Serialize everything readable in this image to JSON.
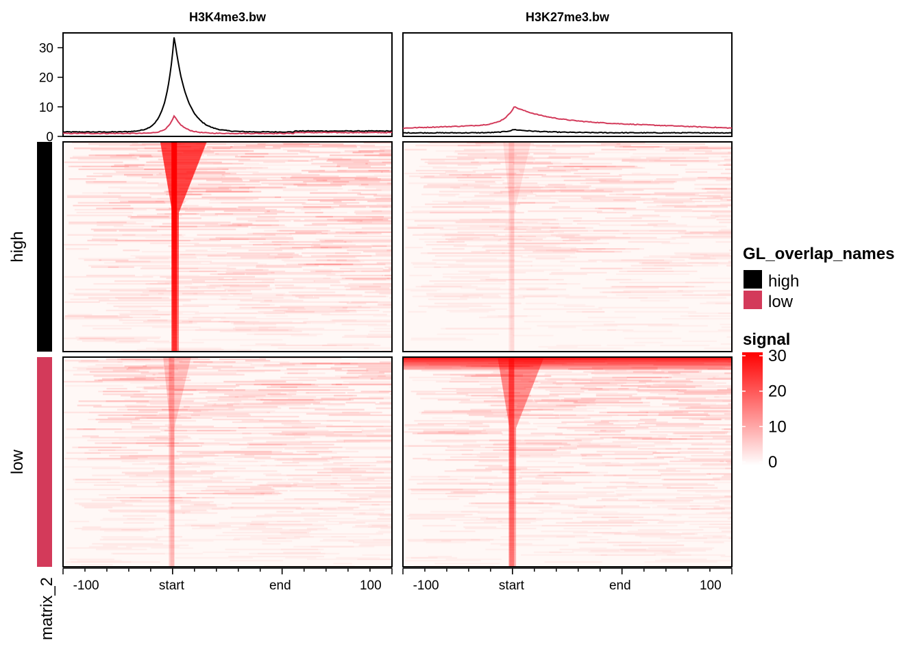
{
  "chart_data": {
    "type": "heatmap",
    "title": "",
    "x_axis": {
      "tick_labels": [
        "-100",
        "start",
        "end",
        "100"
      ],
      "minor_ticks_per_segment": 5
    },
    "profile_y_axis": {
      "ticks": [
        0,
        10,
        20,
        30
      ],
      "range": [
        0,
        35
      ]
    },
    "panels": [
      {
        "name": "H3K4me3.bw",
        "profiles": [
          {
            "group": "high",
            "color": "#000000",
            "peak": 34,
            "baseline": 1.5,
            "peak_x": 0.338,
            "peak_width": 0.025,
            "tail_right": 0.05
          },
          {
            "group": "low",
            "color": "#d33a5a",
            "peak": 7,
            "baseline": 1.0,
            "peak_x": 0.338,
            "peak_width": 0.02,
            "tail_right": 0.04
          }
        ],
        "heatmap_rows": [
          {
            "group": "high",
            "peak_intensity": 1.0,
            "peak_x": 0.338,
            "background": 0.12
          },
          {
            "group": "low",
            "peak_intensity": 0.25,
            "peak_x": 0.33,
            "background": 0.1
          }
        ]
      },
      {
        "name": "H3K27me3.bw",
        "profiles": [
          {
            "group": "high",
            "color": "#000000",
            "peak": 2.3,
            "baseline": 1.2,
            "peak_x": 0.338,
            "peak_width": 0.03,
            "tail_right": 0.2
          },
          {
            "group": "low",
            "color": "#d33a5a",
            "peak": 9,
            "baseline": 2.8,
            "peak_x": 0.338,
            "peak_width": 0.03,
            "tail_right": 0.3
          }
        ],
        "heatmap_rows": [
          {
            "group": "high",
            "peak_intensity": 0.12,
            "peak_x": 0.33,
            "background": 0.08
          },
          {
            "group": "low",
            "peak_intensity": 0.6,
            "peak_x": 0.33,
            "background": 0.1,
            "top_band": true
          }
        ]
      }
    ],
    "row_groups": [
      {
        "name": "high",
        "color": "#000000"
      },
      {
        "name": "low",
        "color": "#d33a5a"
      }
    ],
    "column_annotation_label": "matrix_2",
    "legends": [
      {
        "title": "GL_overlap_names",
        "entries": [
          {
            "label": "high",
            "color": "#000000"
          },
          {
            "label": "low",
            "color": "#d33a5a"
          }
        ]
      },
      {
        "title": "signal",
        "colorbar": {
          "min": 0,
          "max": 30,
          "ticks": [
            "0",
            "10",
            "20",
            "30"
          ],
          "low_color": "#ffffff",
          "high_color": "#ff0000"
        }
      }
    ]
  }
}
